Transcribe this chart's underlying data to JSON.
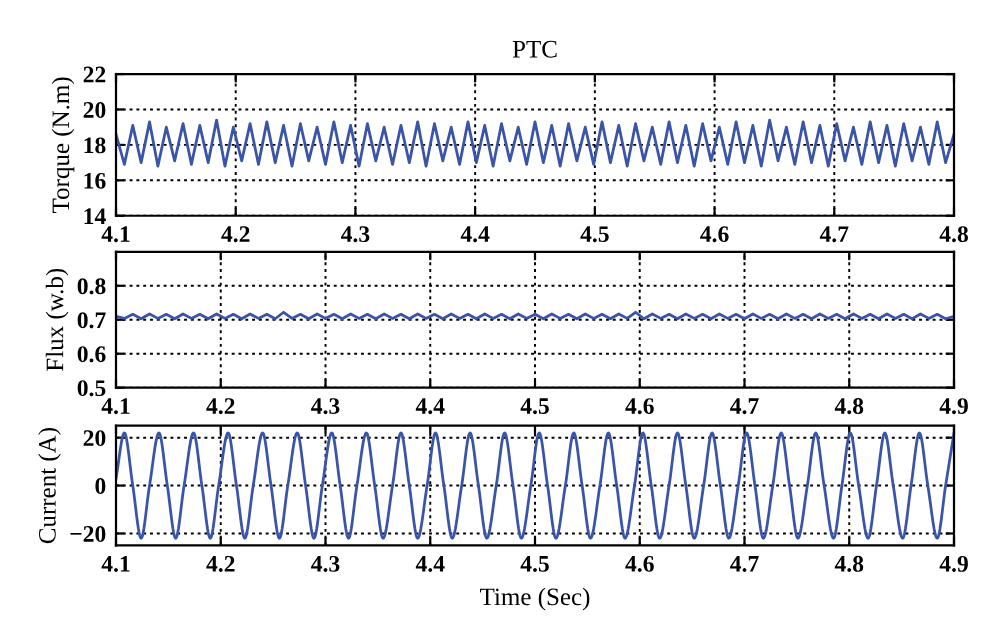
{
  "chart_data": [
    {
      "type": "line",
      "title": "PTC",
      "ylabel": "Torque (N.m)",
      "xlim": [
        4.1,
        4.8
      ],
      "xticks": [
        4.1,
        4.2,
        4.3,
        4.4,
        4.5,
        4.6,
        4.7,
        4.8
      ],
      "ylim": [
        14,
        22
      ],
      "yticks": [
        14,
        16,
        18,
        20,
        22
      ],
      "grid": true,
      "line_style": "solid",
      "series": [
        {
          "color": "#3a54a8",
          "x": [
            4.1,
            4.107,
            4.114,
            4.121,
            4.128,
            4.135,
            4.142,
            4.149,
            4.156,
            4.163,
            4.17,
            4.177,
            4.184,
            4.191,
            4.198,
            4.205,
            4.212,
            4.219,
            4.226,
            4.233,
            4.24,
            4.247,
            4.254,
            4.261,
            4.268,
            4.275,
            4.282,
            4.289,
            4.296,
            4.303,
            4.31,
            4.317,
            4.324,
            4.331,
            4.338,
            4.345,
            4.352,
            4.359,
            4.366,
            4.373,
            4.38,
            4.387,
            4.394,
            4.401,
            4.408,
            4.415,
            4.422,
            4.429,
            4.436,
            4.443,
            4.45,
            4.457,
            4.464,
            4.471,
            4.478,
            4.485,
            4.492,
            4.499,
            4.506,
            4.513,
            4.52,
            4.527,
            4.534,
            4.541,
            4.548,
            4.555,
            4.562,
            4.569,
            4.576,
            4.583,
            4.59,
            4.597,
            4.604,
            4.611,
            4.618,
            4.625,
            4.632,
            4.639,
            4.646,
            4.653,
            4.66,
            4.667,
            4.674,
            4.681,
            4.688,
            4.695,
            4.702,
            4.709,
            4.716,
            4.723,
            4.73,
            4.737,
            4.744,
            4.751,
            4.758,
            4.765,
            4.772,
            4.779,
            4.786,
            4.793,
            4.8
          ],
          "values": [
            18.6,
            16.9,
            19.1,
            17.0,
            19.3,
            16.8,
            19.0,
            17.1,
            19.2,
            16.9,
            19.1,
            17.0,
            19.4,
            16.8,
            19.0,
            17.1,
            19.2,
            16.9,
            19.3,
            17.0,
            19.1,
            16.8,
            19.2,
            17.1,
            19.0,
            16.9,
            19.3,
            17.0,
            19.1,
            16.8,
            19.2,
            17.1,
            19.0,
            16.9,
            19.1,
            17.0,
            19.3,
            16.8,
            19.2,
            17.1,
            19.0,
            16.9,
            19.3,
            17.0,
            19.1,
            16.8,
            19.2,
            17.1,
            19.0,
            16.9,
            19.3,
            17.0,
            19.1,
            16.8,
            19.2,
            17.1,
            19.0,
            16.9,
            19.3,
            17.0,
            19.1,
            16.8,
            19.2,
            17.1,
            19.0,
            16.9,
            19.3,
            17.0,
            19.1,
            16.8,
            19.2,
            17.1,
            19.0,
            16.9,
            19.3,
            17.0,
            19.1,
            16.8,
            19.4,
            17.1,
            19.0,
            16.9,
            19.3,
            17.0,
            19.1,
            16.8,
            19.2,
            17.1,
            19.0,
            16.9,
            19.3,
            17.0,
            19.1,
            16.8,
            19.2,
            17.1,
            19.0,
            16.9,
            19.3,
            17.0,
            18.6
          ]
        }
      ]
    },
    {
      "type": "line",
      "ylabel": "Flux (w.b)",
      "xlim": [
        4.1,
        4.9
      ],
      "xticks": [
        4.1,
        4.2,
        4.3,
        4.4,
        4.5,
        4.6,
        4.7,
        4.8,
        4.9
      ],
      "ylim": [
        0.5,
        0.9
      ],
      "yticks": [
        0.5,
        0.6,
        0.7,
        0.8
      ],
      "grid": true,
      "line_style": "solid",
      "series": [
        {
          "color": "#3a54a8",
          "x": [
            4.1,
            4.108,
            4.116,
            4.124,
            4.132,
            4.14,
            4.148,
            4.156,
            4.164,
            4.172,
            4.18,
            4.188,
            4.196,
            4.204,
            4.212,
            4.22,
            4.228,
            4.236,
            4.244,
            4.252,
            4.26,
            4.268,
            4.276,
            4.284,
            4.292,
            4.3,
            4.308,
            4.316,
            4.324,
            4.332,
            4.34,
            4.348,
            4.356,
            4.364,
            4.372,
            4.38,
            4.388,
            4.396,
            4.404,
            4.412,
            4.42,
            4.428,
            4.436,
            4.444,
            4.452,
            4.46,
            4.468,
            4.476,
            4.484,
            4.492,
            4.5,
            4.508,
            4.516,
            4.524,
            4.532,
            4.54,
            4.548,
            4.556,
            4.564,
            4.572,
            4.58,
            4.588,
            4.596,
            4.604,
            4.612,
            4.62,
            4.628,
            4.636,
            4.644,
            4.652,
            4.66,
            4.668,
            4.676,
            4.684,
            4.692,
            4.7,
            4.708,
            4.716,
            4.724,
            4.732,
            4.74,
            4.748,
            4.756,
            4.764,
            4.772,
            4.78,
            4.788,
            4.796,
            4.804,
            4.812,
            4.82,
            4.828,
            4.836,
            4.844,
            4.852,
            4.86,
            4.868,
            4.876,
            4.884,
            4.892,
            4.9
          ],
          "values": [
            0.71,
            0.704,
            0.716,
            0.703,
            0.717,
            0.704,
            0.716,
            0.703,
            0.717,
            0.704,
            0.716,
            0.703,
            0.717,
            0.704,
            0.716,
            0.703,
            0.717,
            0.704,
            0.716,
            0.703,
            0.722,
            0.704,
            0.716,
            0.703,
            0.717,
            0.704,
            0.716,
            0.703,
            0.717,
            0.704,
            0.716,
            0.703,
            0.717,
            0.704,
            0.716,
            0.703,
            0.717,
            0.704,
            0.716,
            0.703,
            0.717,
            0.704,
            0.716,
            0.703,
            0.717,
            0.704,
            0.716,
            0.703,
            0.717,
            0.704,
            0.716,
            0.703,
            0.717,
            0.704,
            0.716,
            0.703,
            0.717,
            0.704,
            0.716,
            0.703,
            0.717,
            0.704,
            0.722,
            0.703,
            0.717,
            0.704,
            0.716,
            0.703,
            0.717,
            0.704,
            0.716,
            0.703,
            0.717,
            0.704,
            0.716,
            0.703,
            0.717,
            0.704,
            0.716,
            0.703,
            0.717,
            0.704,
            0.716,
            0.703,
            0.717,
            0.704,
            0.716,
            0.703,
            0.717,
            0.704,
            0.716,
            0.703,
            0.717,
            0.704,
            0.716,
            0.703,
            0.717,
            0.704,
            0.716,
            0.703,
            0.71
          ]
        }
      ]
    },
    {
      "type": "line",
      "ylabel": "Current (A)",
      "xlabel": "Time (Sec)",
      "xlim": [
        4.1,
        4.9
      ],
      "xticks": [
        4.1,
        4.2,
        4.3,
        4.4,
        4.5,
        4.6,
        4.7,
        4.8,
        4.9
      ],
      "ylim": [
        -25,
        25
      ],
      "yticks": [
        {
          "value": -20,
          "label": "−20"
        },
        0,
        20
      ],
      "grid": true,
      "line_style": "solid",
      "series": [
        {
          "color": "#3a54a8",
          "x": [
            4.1,
            4.108,
            4.116,
            4.124,
            4.132,
            4.141,
            4.149,
            4.157,
            4.165,
            4.174,
            4.182,
            4.19,
            4.198,
            4.207,
            4.215,
            4.223,
            4.231,
            4.24,
            4.248,
            4.256,
            4.264,
            4.273,
            4.281,
            4.289,
            4.297,
            4.306,
            4.314,
            4.322,
            4.33,
            4.339,
            4.347,
            4.355,
            4.364,
            4.372,
            4.38,
            4.388,
            4.397,
            4.405,
            4.413,
            4.421,
            4.43,
            4.438,
            4.446,
            4.454,
            4.463,
            4.471,
            4.479,
            4.487,
            4.496,
            4.504,
            4.512,
            4.52,
            4.529,
            4.537,
            4.545,
            4.553,
            4.562,
            4.57,
            4.578,
            4.586,
            4.595,
            4.603,
            4.611,
            4.619,
            4.628,
            4.636,
            4.644,
            4.652,
            4.661,
            4.669,
            4.677,
            4.685,
            4.694,
            4.702,
            4.71,
            4.718,
            4.727,
            4.735,
            4.743,
            4.751,
            4.76,
            4.768,
            4.776,
            4.785,
            4.793,
            4.801,
            4.809,
            4.818,
            4.826,
            4.834,
            4.842,
            4.851,
            4.859,
            4.867,
            4.875,
            4.884,
            4.892,
            4.9
          ],
          "values": [
            3,
            22,
            0,
            -22,
            0,
            22,
            0,
            -22,
            0,
            22,
            0,
            -22,
            0,
            22,
            0,
            -22,
            0,
            22,
            0,
            -22,
            0,
            22,
            0,
            -22,
            0,
            22,
            0,
            -22,
            0,
            22,
            0,
            -22,
            0,
            22,
            0,
            -22,
            0,
            22,
            0,
            -22,
            0,
            22,
            0,
            -22,
            0,
            22,
            0,
            -22,
            0,
            22,
            0,
            -22,
            0,
            22,
            0,
            -22,
            0,
            22,
            0,
            -22,
            0,
            22,
            0,
            -22,
            0,
            22,
            0,
            -22,
            0,
            22,
            0,
            -22,
            0,
            22,
            0,
            -22,
            0,
            22,
            0,
            -22,
            0,
            22,
            0,
            -22,
            0,
            22,
            0,
            -22,
            0,
            22,
            0,
            -22,
            0,
            22,
            0,
            -22,
            0,
            22
          ]
        }
      ]
    }
  ]
}
